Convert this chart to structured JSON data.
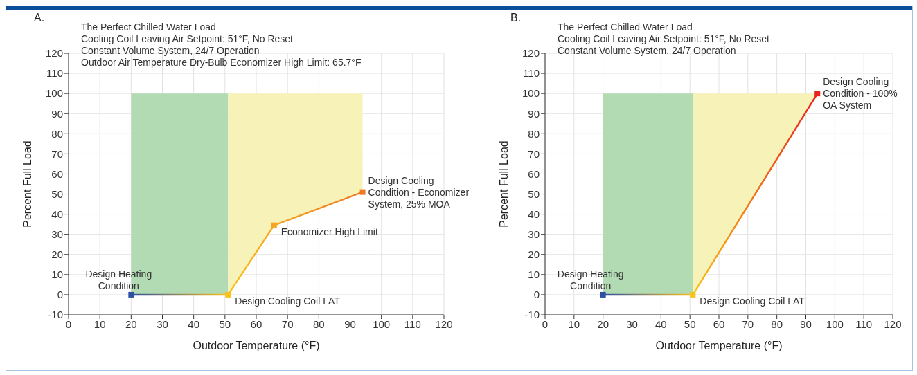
{
  "chart_data": [
    {
      "type": "line",
      "title": "A.",
      "subtitle": "The Perfect Chilled Water Load\nCooling Coil Leaving Air Setpoint: 51°F, No Reset\nConstant Volume System, 24/7 Operation\nOutdoor Air Temperature Dry-Bulb Economizer High Limit: 65.7°F",
      "xlabel": "Outdoor Temperature (°F)",
      "ylabel": "Percent Full Load",
      "xlim": [
        0,
        120
      ],
      "ylim": [
        -10,
        120
      ],
      "xticks": [
        0,
        10,
        20,
        30,
        40,
        50,
        60,
        70,
        80,
        90,
        100,
        110,
        120
      ],
      "yticks": [
        -10,
        0,
        10,
        20,
        30,
        40,
        50,
        60,
        70,
        80,
        90,
        100,
        110,
        120
      ],
      "grid": true,
      "legend": false,
      "line_style": "solid",
      "series": [
        {
          "type": "area",
          "color": "#b3dbb3",
          "x": [
            20,
            51
          ],
          "values": [
            100,
            100
          ]
        },
        {
          "type": "area",
          "color": "#f7f3b8",
          "x": [
            51,
            65.7,
            94
          ],
          "values": [
            100,
            100,
            100
          ]
        },
        {
          "x": [
            20,
            51,
            65.7,
            94
          ],
          "values": [
            0,
            0,
            34.5,
            51
          ],
          "marker": "square",
          "colors": [
            "#2e4fa3",
            "#f8c21a",
            "#f5a623",
            "#f07a22"
          ]
        }
      ],
      "annotations": [
        {
          "text": "Design Heating\nCondition",
          "x": 20,
          "y": 0
        },
        {
          "text": "Design Cooling Coil LAT",
          "x": 51,
          "y": 0
        },
        {
          "text": "Economizer High Limit",
          "x": 65.7,
          "y": 34.5
        },
        {
          "text": "Design Cooling\nCondition - Economizer\nSystem, 25% MOA",
          "x": 94,
          "y": 51
        }
      ]
    },
    {
      "type": "line",
      "title": "B.",
      "subtitle": "The Perfect Chilled Water Load\nCooling Coil Leaving Air Setpoint: 51°F, No Reset\nConstant Volume System, 24/7 Operation",
      "xlabel": "Outdoor Temperature (°F)",
      "ylabel": "Percent Full Load",
      "xlim": [
        0,
        120
      ],
      "ylim": [
        -10,
        120
      ],
      "xticks": [
        0,
        10,
        20,
        30,
        40,
        50,
        60,
        70,
        80,
        90,
        100,
        110,
        120
      ],
      "yticks": [
        -10,
        0,
        10,
        20,
        30,
        40,
        50,
        60,
        70,
        80,
        90,
        100,
        110,
        120
      ],
      "grid": true,
      "legend": false,
      "line_style": "solid",
      "series": [
        {
          "type": "area",
          "color": "#b3dbb3",
          "x": [
            20,
            51
          ],
          "values": [
            100,
            100
          ]
        },
        {
          "type": "area",
          "color": "#f7f3b8",
          "x": [
            51,
            94
          ],
          "values": [
            100,
            100
          ]
        },
        {
          "x": [
            20,
            51,
            94
          ],
          "values": [
            0,
            0,
            100
          ],
          "marker": "square",
          "colors": [
            "#2e4fa3",
            "#f8c21a",
            "#e8221c"
          ]
        }
      ],
      "annotations": [
        {
          "text": "Design Heating\nCondition",
          "x": 20,
          "y": 0
        },
        {
          "text": "Design Cooling Coil LAT",
          "x": 51,
          "y": 0
        },
        {
          "text": "Design Cooling\nCondition - 100%\nOA System",
          "x": 94,
          "y": 100
        }
      ]
    }
  ]
}
